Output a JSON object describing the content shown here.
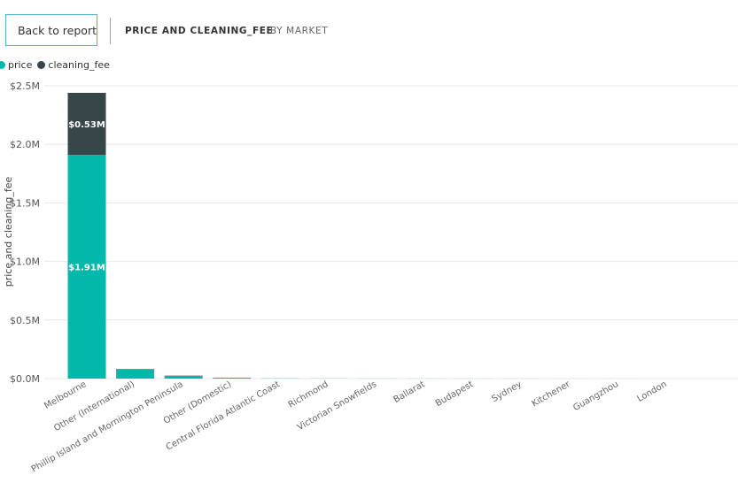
{
  "header": {
    "back_label": "Back to report",
    "title": "PRICE AND CLEANING_FEE",
    "subtitle": "BY MARKET"
  },
  "colors": {
    "price": "#01b8aa",
    "cleaning_fee": "#374649",
    "border": "#4fb3c9"
  },
  "chart_data": {
    "type": "bar",
    "stacked": true,
    "ylabel": "price and cleaning_fee",
    "ylim": [
      0,
      2500000
    ],
    "yticks": [
      {
        "value": 0,
        "label": "$0.0M"
      },
      {
        "value": 500000,
        "label": "$0.5M"
      },
      {
        "value": 1000000,
        "label": "$1.0M"
      },
      {
        "value": 1500000,
        "label": "$1.5M"
      },
      {
        "value": 2000000,
        "label": "$2.0M"
      },
      {
        "value": 2500000,
        "label": "$2.5M"
      }
    ],
    "categories": [
      "Melbourne",
      "Other (International)",
      "Phillip Island and Mornington Peninsula",
      "Other (Domestic)",
      "Central Florida Atlantic Coast",
      "Richmond",
      "Victorian Snowfields",
      "Ballarat",
      "Budapest",
      "Sydney",
      "Kitchener",
      "Guangzhou",
      "London"
    ],
    "series": [
      {
        "name": "price",
        "values": [
          1910000,
          75000,
          22000,
          7000,
          1500,
          1000,
          800,
          500,
          400,
          300,
          200,
          150,
          100
        ],
        "labels": [
          "$1.91M",
          "",
          "",
          "",
          "",
          "",
          "",
          "",
          "",
          "",
          "",
          "",
          ""
        ]
      },
      {
        "name": "cleaning_fee",
        "values": [
          530000,
          5000,
          3000,
          1000,
          200,
          100,
          100,
          50,
          50,
          40,
          30,
          20,
          10
        ],
        "labels": [
          "$0.53M",
          "",
          "",
          "",
          "",
          "",
          "",
          "",
          "",
          "",
          "",
          "",
          ""
        ]
      }
    ],
    "grid": true,
    "legend_position": "top-left"
  }
}
